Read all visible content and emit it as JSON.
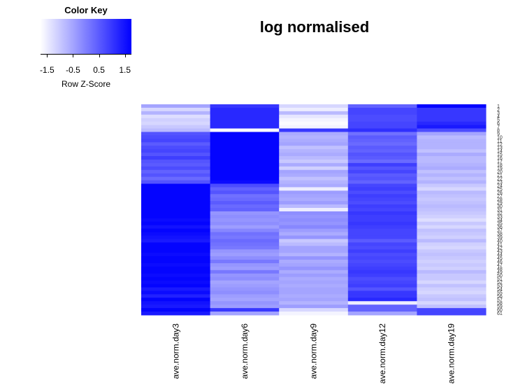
{
  "chart_data": {
    "type": "heatmap",
    "title": "log normalised",
    "color_key": {
      "title": "Color Key",
      "xlabel": "Row Z-Score",
      "ticks": [
        "-1.5",
        "-0.5",
        "0.5",
        "1.5"
      ],
      "tick_values": [
        -1.5,
        -0.5,
        0.5,
        1.5
      ],
      "range": [
        -1.75,
        1.75
      ],
      "low_color": "#ffffff",
      "high_color": "#0000ff"
    },
    "columns": [
      "ave.norm.day3",
      "ave.norm.day6",
      "ave.norm.day9",
      "ave.norm.day12",
      "ave.norm.day19"
    ],
    "row_labels": [
      "1",
      "2",
      "3",
      "4",
      "5",
      "6",
      "7",
      "8",
      "9",
      "10",
      "11",
      "12",
      "13",
      "14",
      "15",
      "16",
      "17",
      "18",
      "19",
      "20",
      "21",
      "22",
      "23",
      "24",
      "25",
      "26",
      "27",
      "28",
      "29",
      "30",
      "31",
      "32",
      "33",
      "34",
      "35",
      "36",
      "37",
      "38",
      "39",
      "40",
      "41",
      "42",
      "43",
      "44",
      "45",
      "46",
      "47",
      "48",
      "49",
      "50",
      "51",
      "52",
      "53",
      "54",
      "55",
      "56",
      "57",
      "58",
      "59",
      "60",
      "61"
    ],
    "row_label_step": 2,
    "values": [
      [
        -0.5,
        1.0,
        -1.2,
        0.4,
        1.7
      ],
      [
        -1.2,
        1.2,
        -1.5,
        0.8,
        1.0
      ],
      [
        -0.7,
        1.2,
        -0.8,
        0.8,
        1.0
      ],
      [
        -1.3,
        1.2,
        -1.4,
        0.7,
        1.0
      ],
      [
        -1.1,
        1.2,
        -1.6,
        0.7,
        1.0
      ],
      [
        -1.2,
        1.2,
        -1.7,
        0.8,
        1.2
      ],
      [
        -1.0,
        1.2,
        -1.6,
        0.8,
        1.4
      ],
      [
        -0.8,
        -1.7,
        1.0,
        1.1,
        0.7
      ],
      [
        0.6,
        1.7,
        -0.6,
        0.2,
        -0.5
      ],
      [
        0.7,
        1.7,
        -0.7,
        0.5,
        -0.8
      ],
      [
        0.8,
        1.7,
        -0.6,
        0.4,
        -0.7
      ],
      [
        0.5,
        1.7,
        -0.5,
        0.3,
        -0.7
      ],
      [
        0.7,
        1.7,
        -0.9,
        0.5,
        -0.7
      ],
      [
        0.8,
        1.7,
        -0.7,
        0.4,
        -0.9
      ],
      [
        0.6,
        1.7,
        -0.6,
        0.6,
        -0.6
      ],
      [
        0.9,
        1.7,
        -0.8,
        0.5,
        -0.8
      ],
      [
        0.6,
        1.7,
        -1.0,
        0.3,
        -0.8
      ],
      [
        0.5,
        1.7,
        -0.6,
        0.9,
        -0.7
      ],
      [
        0.7,
        1.7,
        -1.1,
        0.6,
        -0.6
      ],
      [
        0.4,
        1.7,
        -0.5,
        0.8,
        -0.9
      ],
      [
        0.6,
        1.7,
        -0.6,
        0.5,
        -0.7
      ],
      [
        0.3,
        1.7,
        -0.9,
        0.6,
        -0.9
      ],
      [
        0.6,
        1.6,
        -0.7,
        0.4,
        -0.7
      ],
      [
        1.7,
        0.7,
        -0.6,
        0.8,
        -1.0
      ],
      [
        1.7,
        0.4,
        -1.5,
        0.9,
        -1.2
      ],
      [
        1.7,
        0.6,
        -0.4,
        0.7,
        -0.8
      ],
      [
        1.7,
        0.2,
        -0.5,
        0.9,
        -0.9
      ],
      [
        1.7,
        0.3,
        -0.6,
        0.8,
        -1.0
      ],
      [
        1.7,
        0.5,
        -0.4,
        0.7,
        -0.9
      ],
      [
        1.7,
        0.3,
        -0.8,
        0.9,
        -0.8
      ],
      [
        1.7,
        0.4,
        -1.5,
        0.8,
        -0.9
      ],
      [
        1.7,
        -0.3,
        -0.2,
        1.0,
        -1.0
      ],
      [
        1.7,
        -0.2,
        -0.3,
        0.9,
        -1.1
      ],
      [
        1.6,
        -0.3,
        -0.2,
        0.9,
        -1.3
      ],
      [
        1.7,
        -0.2,
        -0.3,
        1.0,
        -1.0
      ],
      [
        1.5,
        -0.4,
        -0.1,
        0.9,
        -1.2
      ],
      [
        1.7,
        -0.1,
        -0.4,
        0.8,
        -0.9
      ],
      [
        1.6,
        0.2,
        -0.6,
        0.8,
        -1.0
      ],
      [
        1.5,
        0.1,
        -0.3,
        0.8,
        -1.1
      ],
      [
        1.4,
        0.3,
        -1.0,
        0.5,
        -0.8
      ],
      [
        1.7,
        0.2,
        -0.8,
        0.8,
        -1.1
      ],
      [
        1.7,
        0.1,
        -0.5,
        0.7,
        -1.2
      ],
      [
        1.7,
        -0.3,
        -0.5,
        0.9,
        -1.0
      ],
      [
        1.6,
        -0.4,
        -0.7,
        0.7,
        -0.9
      ],
      [
        1.7,
        -0.2,
        -0.3,
        0.8,
        -1.0
      ],
      [
        1.7,
        0.1,
        -0.6,
        0.7,
        -1.1
      ],
      [
        1.6,
        -0.3,
        -0.5,
        0.8,
        -1.0
      ],
      [
        1.7,
        -0.4,
        -0.3,
        0.9,
        -1.1
      ],
      [
        1.7,
        0.1,
        -0.6,
        1.0,
        -0.8
      ],
      [
        1.6,
        -0.3,
        -0.4,
        0.9,
        -1.0
      ],
      [
        1.7,
        -0.2,
        -0.6,
        0.7,
        -1.0
      ],
      [
        1.6,
        -0.5,
        -0.5,
        0.8,
        -1.2
      ],
      [
        1.7,
        -0.4,
        -0.6,
        0.9,
        -0.9
      ],
      [
        1.4,
        -0.3,
        -0.5,
        0.6,
        -1.1
      ],
      [
        1.6,
        -0.2,
        -0.5,
        1.0,
        -1.2
      ],
      [
        1.3,
        -0.4,
        -0.6,
        1.0,
        -1.0
      ],
      [
        1.7,
        -0.5,
        -0.5,
        1.2,
        -0.9
      ],
      [
        1.5,
        -0.3,
        -0.7,
        -1.5,
        -1.2
      ],
      [
        1.4,
        -0.4,
        -0.4,
        0.4,
        -0.9
      ],
      [
        1.7,
        1.0,
        -1.2,
        0.4,
        0.8
      ],
      [
        1.4,
        -0.5,
        -1.6,
        -0.5,
        0.8
      ]
    ]
  }
}
